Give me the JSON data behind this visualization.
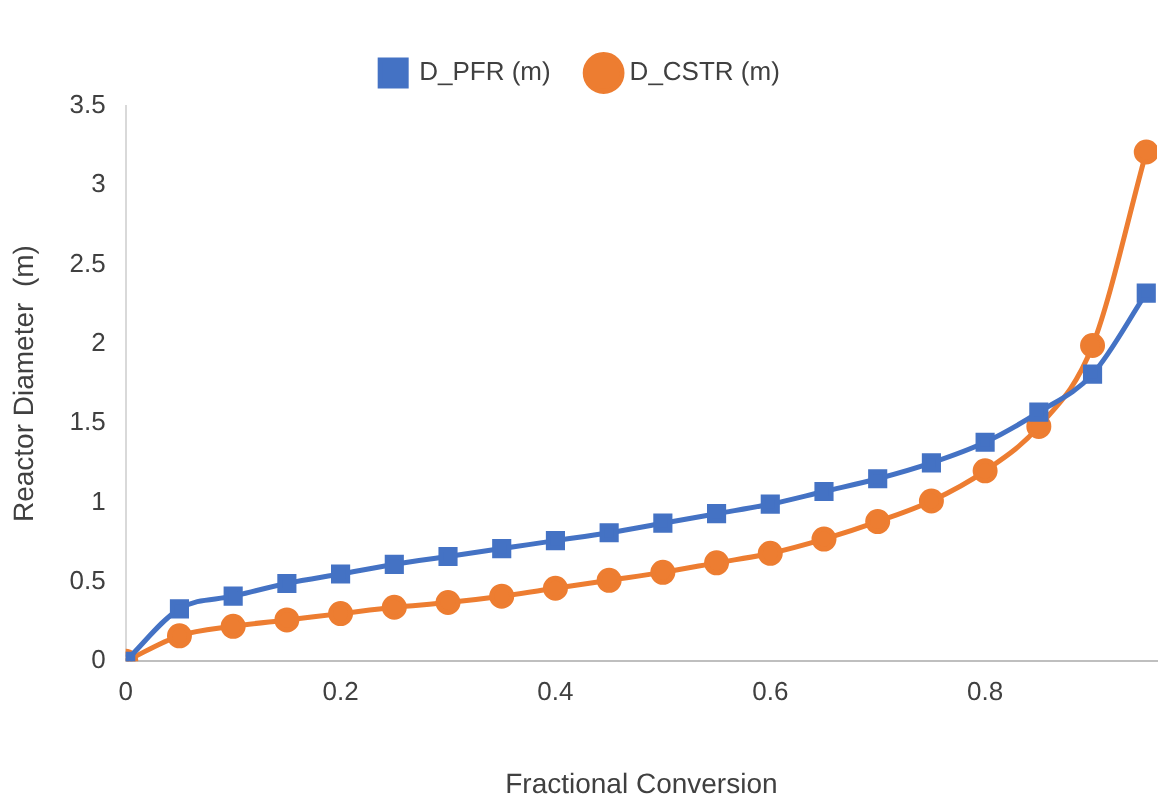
{
  "chart_data": {
    "type": "line",
    "xlabel": "Fractional Conversion",
    "ylabel": "Reactor Diameter  (m)",
    "x": [
      0,
      0.05,
      0.1,
      0.15,
      0.2,
      0.25,
      0.3,
      0.35,
      0.4,
      0.45,
      0.5,
      0.55,
      0.6,
      0.65,
      0.7,
      0.75,
      0.8,
      0.85,
      0.9,
      0.95
    ],
    "series": [
      {
        "name": "D_PFR (m)",
        "color": "#4472c4",
        "marker": "square",
        "values": [
          0,
          0.33,
          0.41,
          0.49,
          0.55,
          0.61,
          0.66,
          0.71,
          0.76,
          0.81,
          0.87,
          0.93,
          0.99,
          1.07,
          1.15,
          1.25,
          1.38,
          1.57,
          1.81,
          2.32
        ]
      },
      {
        "name": "D_CSTR (m)",
        "color": "#ed7d31",
        "marker": "circle",
        "values": [
          0,
          0.16,
          0.22,
          0.26,
          0.3,
          0.34,
          0.37,
          0.41,
          0.46,
          0.51,
          0.56,
          0.62,
          0.68,
          0.77,
          0.88,
          1.01,
          1.2,
          1.48,
          1.99,
          3.21
        ]
      }
    ],
    "xlim": [
      0,
      0.96
    ],
    "xticks": [
      0,
      0.2,
      0.4,
      0.6,
      0.8
    ],
    "ylim": [
      0,
      3.5
    ],
    "yticks": [
      0,
      0.5,
      1,
      1.5,
      2,
      2.5,
      3,
      3.5
    ],
    "grid": false,
    "legend": "top",
    "line_style": "solid"
  }
}
